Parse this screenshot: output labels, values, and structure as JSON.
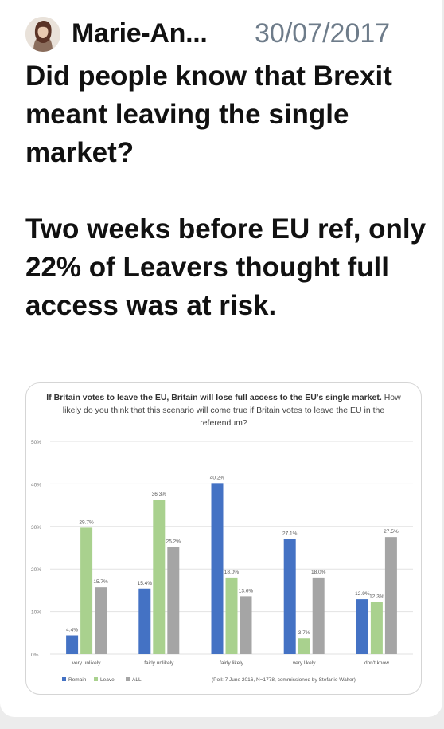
{
  "header": {
    "author": "Marie-An...",
    "date": "30/07/2017"
  },
  "tweet": {
    "paragraph1": "Did people know that Brexit meant leaving the single market?",
    "paragraph2": "Two weeks before EU ref, only 22% of Leavers thought full access was at risk."
  },
  "icons": {
    "avatar": "profile-avatar"
  },
  "chart_data": {
    "type": "bar",
    "title_bold": "If Britain votes to leave the EU, Britain will lose full access to the EU's single market.",
    "title_rest": "How likely do you think that this scenario will come true if Britain votes to leave the EU in the referendum?",
    "categories": [
      "very unlikely",
      "fairly unlikely",
      "fairly likely",
      "very likely",
      "don't know"
    ],
    "series": [
      {
        "name": "Remain",
        "color": "#4472c4",
        "values": [
          4.4,
          15.4,
          40.2,
          27.1,
          12.9
        ],
        "labels": [
          "4.4%",
          "15.4%",
          "40.2%",
          "27.1%",
          "12.9%"
        ]
      },
      {
        "name": "Leave",
        "color": "#a9d18e",
        "values": [
          29.7,
          36.3,
          18.0,
          3.7,
          12.3
        ],
        "labels": [
          "29.7%",
          "36.3%",
          "18.0%",
          "3.7%",
          "12.3%"
        ]
      },
      {
        "name": "ALL",
        "color": "#a5a5a5",
        "values": [
          15.7,
          25.2,
          13.6,
          18.0,
          27.5
        ],
        "labels": [
          "15.7%",
          "25.2%",
          "13.6%",
          "18.0%",
          "27.5%"
        ]
      }
    ],
    "yticks": [
      "0%",
      "10%",
      "20%",
      "30%",
      "40%",
      "50%"
    ],
    "ylim": [
      0,
      50
    ],
    "grid": true,
    "legend_position": "bottom-left",
    "source": "(Poll: 7 June 2016, N=1778, commissioned by Stefanie Walter)"
  }
}
